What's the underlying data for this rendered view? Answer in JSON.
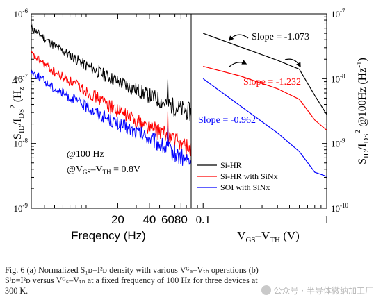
{
  "chart_data": [
    {
      "type": "line",
      "panel": "a",
      "xlabel": "Freqency (Hz)",
      "ylabel": "S_ID/I_DS^2 (Hz^-1)",
      "x_scale": "log",
      "y_scale": "log",
      "xlim": [
        3,
        100
      ],
      "ylim": [
        1e-09,
        1e-06
      ],
      "x_tick_labels": [
        "20",
        "40",
        "60",
        "80"
      ],
      "y_tick_labels": [
        "10^-9",
        "10^-8",
        "10^-7",
        "10^-6"
      ],
      "annotations": [
        "@100 Hz",
        "@V_GS–V_TH = 0.8V"
      ],
      "series": [
        {
          "color": "#000000",
          "x": [
            3,
            5,
            10,
            20,
            40,
            60,
            100
          ],
          "y": [
            6e-07,
            3.2e-07,
            1.6e-07,
            9e-08,
            5.5e-08,
            4e-08,
            3e-08
          ]
        },
        {
          "color": "#ff0000",
          "x": [
            3,
            5,
            10,
            20,
            40,
            60,
            100
          ],
          "y": [
            2.4e-07,
            1.25e-07,
            6.5e-08,
            3.2e-08,
            1.8e-08,
            1.3e-08,
            8e-09
          ]
        },
        {
          "color": "#0000ff",
          "x": [
            3,
            5,
            10,
            20,
            40,
            60,
            100
          ],
          "y": [
            1.3e-07,
            7e-08,
            3.7e-08,
            2e-08,
            1.2e-08,
            8e-09,
            5e-09
          ]
        }
      ]
    },
    {
      "type": "line",
      "panel": "b",
      "xlabel": "V_GS–V_TH (V)",
      "ylabel": "S_ID/I_DS^2 @100Hz (Hz^-1)",
      "x_scale": "log",
      "y_scale": "log",
      "xlim": [
        0.08,
        1
      ],
      "ylim": [
        1e-10,
        1e-07
      ],
      "x_tick_labels": [
        "0.1",
        "1"
      ],
      "y_tick_labels": [
        "10^-10",
        "10^-9",
        "10^-8",
        "10^-7"
      ],
      "legend_position": "bottom-left",
      "series": [
        {
          "name": "Si-HR",
          "color": "#000000",
          "x": [
            0.1,
            0.2,
            0.4,
            0.6,
            0.8,
            1.0
          ],
          "y": [
            5e-08,
            3.1e-08,
            1.92e-08,
            1.4e-08,
            5.5e-09,
            2.8e-09
          ],
          "slope_label": "Slope = -1.073"
        },
        {
          "name": "Si-HR    with SiNx",
          "color": "#ff0000",
          "x": [
            0.1,
            0.2,
            0.4,
            0.6,
            0.8,
            1.0
          ],
          "y": [
            1.55e-08,
            1.1e-08,
            7e-09,
            4.8e-09,
            2.3e-09,
            1.6e-09
          ],
          "slope_label": "Slope = -1.232"
        },
        {
          "name": "SOI      with SiNx",
          "color": "#0000ff",
          "x": [
            0.1,
            0.2,
            0.4,
            0.6,
            0.8,
            1.0
          ],
          "y": [
            1e-08,
            3.8e-09,
            1.45e-09,
            7.5e-10,
            3.6e-10,
            3.1e-10
          ],
          "slope_label": "Slope = -0.962"
        }
      ]
    }
  ],
  "caption": {
    "line1": "Fig. 6 (a) Normalized S₁ᴅ=I²ᴅ density with various Vᴳₛ–Vₜₕ operations (b)",
    "line2": "Sᴵᴅ=I²ᴅ versus Vᴳₛ–Vₜₕ at a fixed frequency of 100 Hz for three devices at",
    "line3": "300 K."
  },
  "watermark": "公众号 · 半导体微纳加工厂"
}
